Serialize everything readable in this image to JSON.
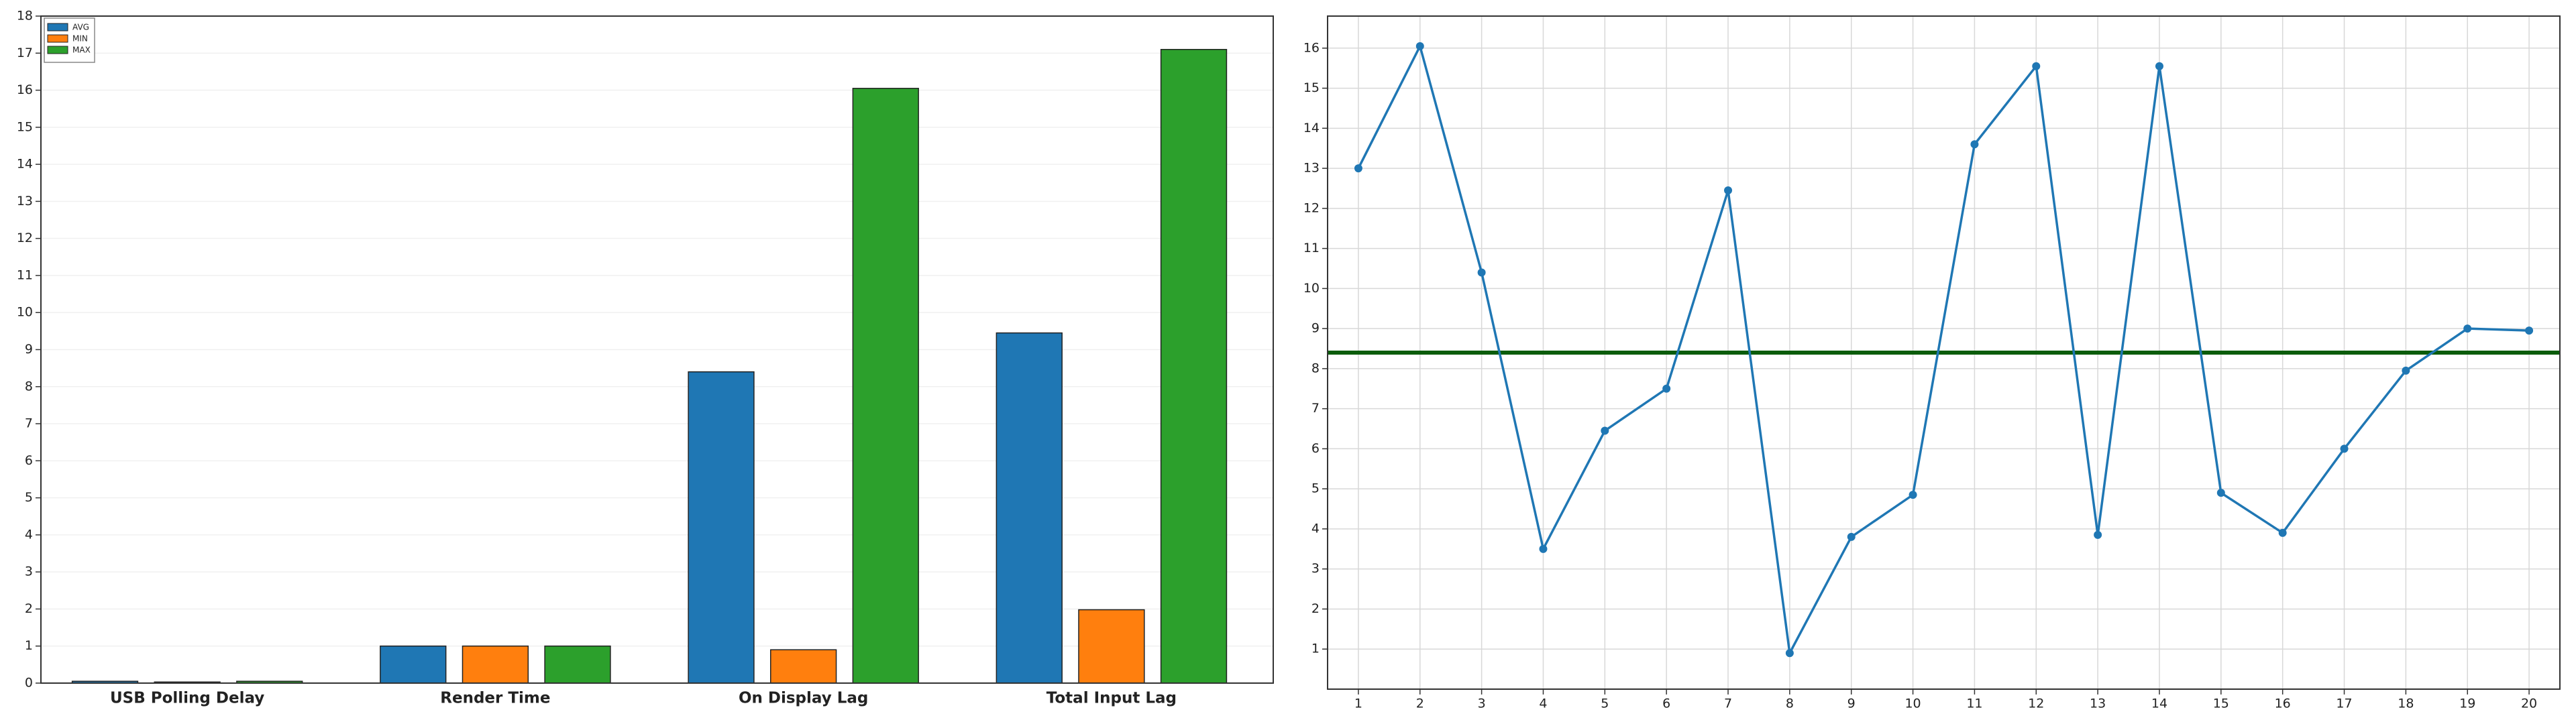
{
  "chart_data": [
    {
      "type": "bar",
      "categories": [
        "USB Polling Delay",
        "Render Time",
        "On Display Lag",
        "Total Input Lag"
      ],
      "series": [
        {
          "name": "AVG",
          "color": "#1f77b4",
          "values": [
            0.05,
            1,
            8.4,
            9.45
          ]
        },
        {
          "name": "MIN",
          "color": "#ff7f0e",
          "values": [
            0.03,
            1,
            0.9,
            1.98
          ]
        },
        {
          "name": "MAX",
          "color": "#2ca02c",
          "values": [
            0.05,
            1,
            16.05,
            17.1
          ]
        }
      ],
      "ylim": [
        0,
        18
      ],
      "yticks": [
        0,
        1,
        2,
        3,
        4,
        5,
        6,
        7,
        8,
        9,
        10,
        11,
        12,
        13,
        14,
        15,
        16,
        17,
        18
      ],
      "grid": true,
      "legend": "upper-left"
    },
    {
      "type": "line",
      "x": [
        1,
        2,
        3,
        4,
        5,
        6,
        7,
        8,
        9,
        10,
        11,
        12,
        13,
        14,
        15,
        16,
        17,
        18,
        19,
        20
      ],
      "series": [
        {
          "color": "#1f77b4",
          "values": [
            13.0,
            16.05,
            10.4,
            3.5,
            6.45,
            7.5,
            12.45,
            0.9,
            3.8,
            4.85,
            13.6,
            15.55,
            3.85,
            15.55,
            4.9,
            3.9,
            6.0,
            7.95,
            9.0,
            8.95
          ]
        }
      ],
      "reference_line": {
        "value": 8.4,
        "color": "#0b5c0b"
      },
      "xlim": [
        0.5,
        20.5
      ],
      "xticks": [
        1,
        2,
        3,
        4,
        5,
        6,
        7,
        8,
        9,
        10,
        11,
        12,
        13,
        14,
        15,
        16,
        17,
        18,
        19,
        20
      ],
      "ylim": [
        0,
        16.8
      ],
      "yticks": [
        1,
        2,
        3,
        4,
        5,
        6,
        7,
        8,
        9,
        10,
        11,
        12,
        13,
        14,
        15,
        16
      ],
      "grid": true
    }
  ]
}
